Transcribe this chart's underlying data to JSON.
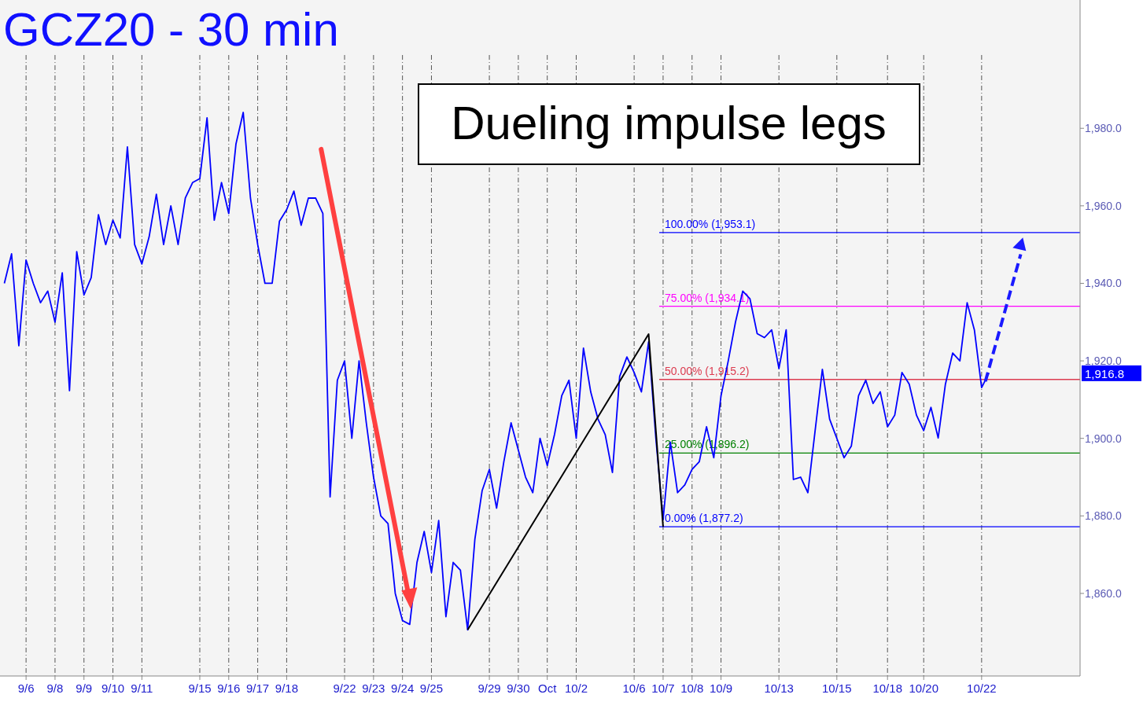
{
  "chart_data": {
    "type": "line",
    "title": "GCZ20 - 30 min",
    "annotations": [
      "Dueling impulse legs",
      "1,916.8"
    ],
    "categories": [
      null,
      null,
      null,
      "9/6",
      null,
      null,
      null,
      "9/8",
      null,
      null,
      null,
      "9/9",
      null,
      null,
      null,
      "9/10",
      null,
      null,
      null,
      "9/11",
      null,
      null,
      null,
      null,
      null,
      null,
      null,
      "9/15",
      null,
      null,
      null,
      "9/16",
      null,
      null,
      null,
      "9/17",
      null,
      null,
      null,
      "9/18",
      null,
      null,
      null,
      null,
      null,
      null,
      null,
      "9/22",
      null,
      null,
      null,
      "9/23",
      null,
      null,
      null,
      "9/24",
      null,
      null,
      null,
      "9/25",
      null,
      null,
      null,
      null,
      null,
      null,
      null,
      "9/29",
      null,
      null,
      null,
      "9/30",
      null,
      null,
      null,
      "Oct",
      null,
      null,
      null,
      "10/2",
      null,
      null,
      null,
      null,
      null,
      null,
      null,
      "10/6",
      null,
      null,
      null,
      "10/7",
      null,
      null,
      null,
      "10/8",
      null,
      null,
      null,
      "10/9",
      null,
      null,
      null,
      null,
      null,
      null,
      null,
      "10/13",
      null,
      null,
      null,
      null,
      null,
      null,
      null,
      "10/15",
      null,
      null,
      null,
      null,
      null,
      null,
      "10/18",
      null,
      null,
      null,
      null,
      "10/20",
      null,
      null,
      null,
      null,
      null,
      null,
      null,
      "10/22",
      null,
      null,
      null,
      null,
      null,
      null,
      null,
      null,
      null,
      null,
      null,
      null,
      null
    ],
    "ylim": [
      1838.7,
      2013.1
    ],
    "yticks": [
      {
        "value": 1860,
        "label": "1,860.0"
      },
      {
        "value": 1880,
        "label": "1,880.0"
      },
      {
        "value": 1900,
        "label": "1,900.0"
      },
      {
        "value": 1920,
        "label": "1,920.0"
      },
      {
        "value": 1940,
        "label": "1,940.0"
      },
      {
        "value": 1960,
        "label": "1,960.0"
      },
      {
        "value": 1980,
        "label": "1,980.0"
      }
    ],
    "grid": "x",
    "ref_lines": [
      {
        "axis": "y",
        "value": 1953.1,
        "label": "100.00% (1,953.1)",
        "color": "#0000ff"
      },
      {
        "axis": "y",
        "value": 1934.1,
        "label": "75.00% (1,934.1)",
        "color": "#ff00ff"
      },
      {
        "axis": "y",
        "value": 1915.2,
        "label": "50.00% (1,915.2)",
        "color": "#dc3c50"
      },
      {
        "axis": "y",
        "value": 1896.2,
        "label": "25.00% (1,896.2)",
        "color": "#008000"
      },
      {
        "axis": "y",
        "value": 1877.2,
        "label": "0.00% (1,877.2)",
        "color": "#0000ff"
      }
    ],
    "series": [
      {
        "color": "#0000ff",
        "values": [
          1940,
          1947.6,
          1923.9,
          1946,
          1940,
          1935,
          1938,
          1930,
          1942.7,
          1912.3,
          1948.2,
          1937,
          1941.5,
          1957.7,
          1950,
          1956.3,
          1951.7,
          1975.2,
          1950,
          1945,
          1952,
          1963,
          1950,
          1960,
          1950,
          1962,
          1966,
          1967,
          1982.7,
          1956.3,
          1966,
          1958,
          1976,
          1984.1,
          1962,
          1950,
          1940,
          1940,
          1956,
          1959,
          1963.8,
          1955,
          1962,
          1962,
          1958,
          1884.9,
          1915,
          1920,
          1900,
          1920,
          1904,
          1890,
          1880,
          1878,
          1860,
          1853,
          1852,
          1868,
          1876,
          1865.4,
          1878.8,
          1854,
          1868,
          1866,
          1850.6,
          1874,
          1886.5,
          1892,
          1882,
          1894,
          1904,
          1897,
          1890,
          1886,
          1900,
          1893,
          1901,
          1911,
          1915,
          1900,
          1923.3,
          1912,
          1905,
          1901,
          1891.2,
          1916,
          1921,
          1917,
          1912,
          1924.9,
          1900,
          1879,
          1899,
          1886,
          1888,
          1892,
          1894,
          1903,
          1895,
          1911,
          1920,
          1930,
          1938,
          1936,
          1927,
          1926,
          1928,
          1918,
          1928,
          1889.4,
          1890,
          1886,
          1902,
          1917.8,
          1905,
          1900,
          1895,
          1898,
          1911,
          1915,
          1909,
          1912,
          1903,
          1906,
          1917,
          1914,
          1906,
          1902,
          1908,
          1900.1,
          1914,
          1922,
          1920,
          1935,
          1928,
          1913.1,
          1916.8,
          null,
          null,
          null,
          null,
          null,
          null,
          null,
          null,
          null,
          null,
          null,
          null
        ]
      },
      {
        "color": "#000000",
        "values": [
          null,
          null,
          null,
          null,
          null,
          null,
          null,
          null,
          null,
          null,
          null,
          null,
          null,
          null,
          null,
          null,
          null,
          null,
          null,
          null,
          null,
          null,
          null,
          null,
          null,
          null,
          null,
          null,
          null,
          null,
          null,
          null,
          null,
          null,
          null,
          null,
          null,
          null,
          null,
          null,
          null,
          null,
          null,
          null,
          null,
          null,
          null,
          null,
          null,
          null,
          null,
          null,
          null,
          null,
          null,
          null,
          null,
          null,
          null,
          null,
          null,
          null,
          null,
          null,
          1850.6,
          null,
          null,
          null,
          null,
          null,
          null,
          null,
          null,
          null,
          null,
          null,
          null,
          null,
          null,
          null,
          null,
          null,
          null,
          null,
          null,
          null,
          null,
          null,
          null,
          1926.9,
          null,
          1877.2,
          null,
          null,
          null,
          null,
          null,
          null,
          null,
          null,
          null,
          null,
          null,
          null,
          null,
          null,
          null,
          null,
          null,
          null,
          null,
          null,
          null,
          null,
          null,
          null,
          null,
          null,
          null,
          null,
          null,
          null,
          null,
          null,
          null,
          null,
          null,
          null,
          null,
          null,
          null,
          null,
          null,
          null,
          null,
          null,
          null,
          null,
          null,
          null,
          null,
          null,
          null,
          null,
          null,
          null,
          null,
          null,
          null
        ]
      }
    ]
  }
}
